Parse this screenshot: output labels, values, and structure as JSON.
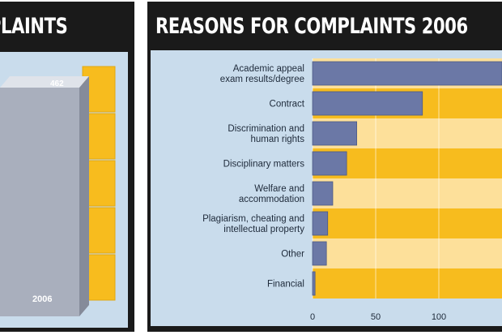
{
  "left_panel": {
    "title": "PLAINTS",
    "year_label": "2006",
    "bar_value_label": "462"
  },
  "right_panel": {
    "title": "REASONS FOR COMPLAINTS 2006"
  },
  "chart_data": {
    "type": "bar",
    "orientation": "horizontal",
    "title": "REASONS FOR COMPLAINTS 2006",
    "categories": [
      "Academic appeal\nexam results/degree",
      "Contract",
      "Discrimination and\nhuman rights",
      "Disciplinary matters",
      "Welfare and\naccommodation",
      "Plagiarism, cheating and\nintellectual property",
      "Other",
      "Financial"
    ],
    "values": [
      150,
      87,
      35,
      27,
      16,
      12,
      11,
      2
    ],
    "xticks": [
      "0",
      "50",
      "100"
    ],
    "xlim": [
      0,
      150
    ],
    "colors": {
      "bar": "#6b78a6",
      "band_a": "#f7bc1e",
      "band_b": "#fde09a",
      "plot_bg": "#c9dcec",
      "panel": "#1a1a1a"
    }
  }
}
